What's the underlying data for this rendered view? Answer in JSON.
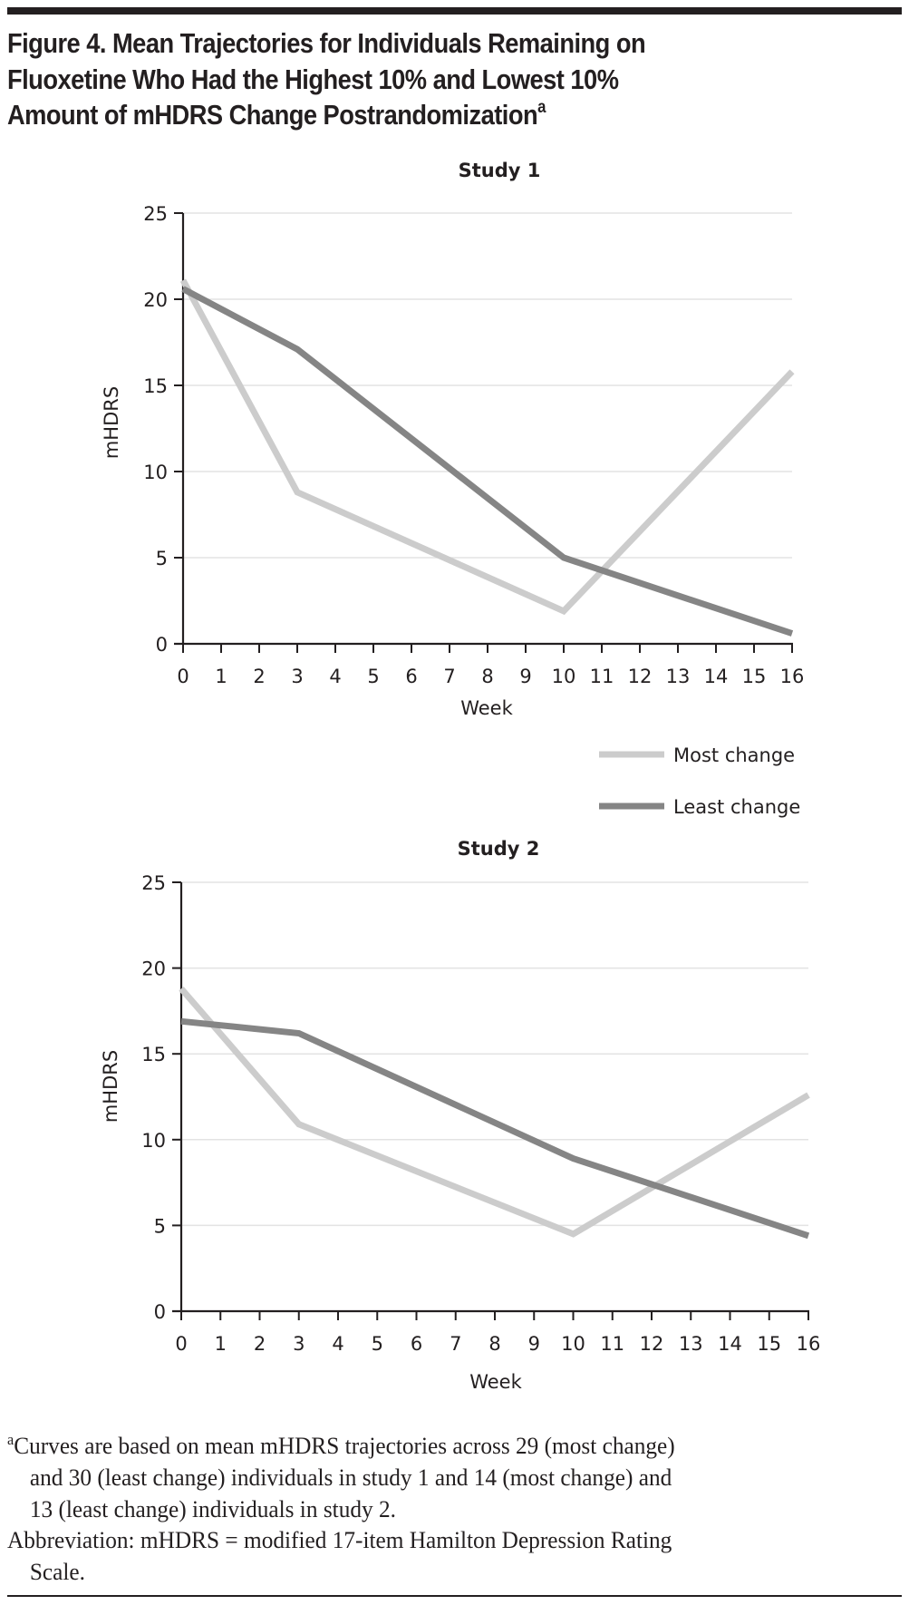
{
  "figure": {
    "title": "Figure 4. Mean Trajectories for Individuals Remaining on Fluoxetine Who Had the Highest 10% and Lowest 10% Amount of mHDRS Change Postrandomization",
    "title_lines": [
      "Figure 4. Mean Trajectories for Individuals Remaining on",
      "Fluoxetine Who Had the Highest 10% and Lowest 10%",
      "Amount of mHDRS Change Postrandomization"
    ],
    "title_footnote_mark": "a"
  },
  "colors": {
    "most_change": "#cccccc",
    "least_change": "#858585",
    "grid": "#e3e3e3",
    "axis": "#231f20"
  },
  "legend": {
    "items": [
      {
        "label": "Most change",
        "color": "#cccccc"
      },
      {
        "label": "Least change",
        "color": "#858585"
      }
    ]
  },
  "chart_data": [
    {
      "type": "line",
      "title": "Study 1",
      "xlabel": "Week",
      "ylabel": "mHDRS",
      "xlim": [
        0,
        16
      ],
      "ylim": [
        0,
        25
      ],
      "x_ticks": [
        0,
        1,
        2,
        3,
        4,
        5,
        6,
        7,
        8,
        9,
        10,
        11,
        12,
        13,
        14,
        15,
        16
      ],
      "y_ticks": [
        0,
        5,
        10,
        15,
        20,
        25
      ],
      "grid": true,
      "legend_position": "bottom-right",
      "series": [
        {
          "name": "Most change",
          "x": [
            0,
            3,
            10,
            16
          ],
          "values": [
            21.1,
            8.8,
            1.9,
            15.8
          ]
        },
        {
          "name": "Least change",
          "x": [
            0,
            3,
            10,
            16
          ],
          "values": [
            20.6,
            17.1,
            5.0,
            0.6
          ]
        }
      ]
    },
    {
      "type": "line",
      "title": "Study 2",
      "xlabel": "Week",
      "ylabel": "mHDRS",
      "xlim": [
        0,
        16
      ],
      "ylim": [
        0,
        25
      ],
      "x_ticks": [
        0,
        1,
        2,
        3,
        4,
        5,
        6,
        7,
        8,
        9,
        10,
        11,
        12,
        13,
        14,
        15,
        16
      ],
      "y_ticks": [
        0,
        5,
        10,
        15,
        20,
        25
      ],
      "grid": true,
      "legend_position": "top-right",
      "series": [
        {
          "name": "Most change",
          "x": [
            0,
            3,
            10,
            16
          ],
          "values": [
            18.8,
            10.9,
            4.5,
            12.6
          ]
        },
        {
          "name": "Least change",
          "x": [
            0,
            3,
            10,
            16
          ],
          "values": [
            16.9,
            16.2,
            8.9,
            4.4
          ]
        }
      ]
    }
  ],
  "footnotes": {
    "a_mark": "a",
    "a_line1": "Curves are based on mean mHDRS trajectories across 29 (most change)",
    "a_line2": "and 30 (least change) individuals in study 1 and 14 (most change) and",
    "a_line3": "13 (least change) individuals in study 2.",
    "abbrev_line1": "Abbreviation: mHDRS = modified 17-item Hamilton Depression Rating",
    "abbrev_line2": "Scale."
  }
}
